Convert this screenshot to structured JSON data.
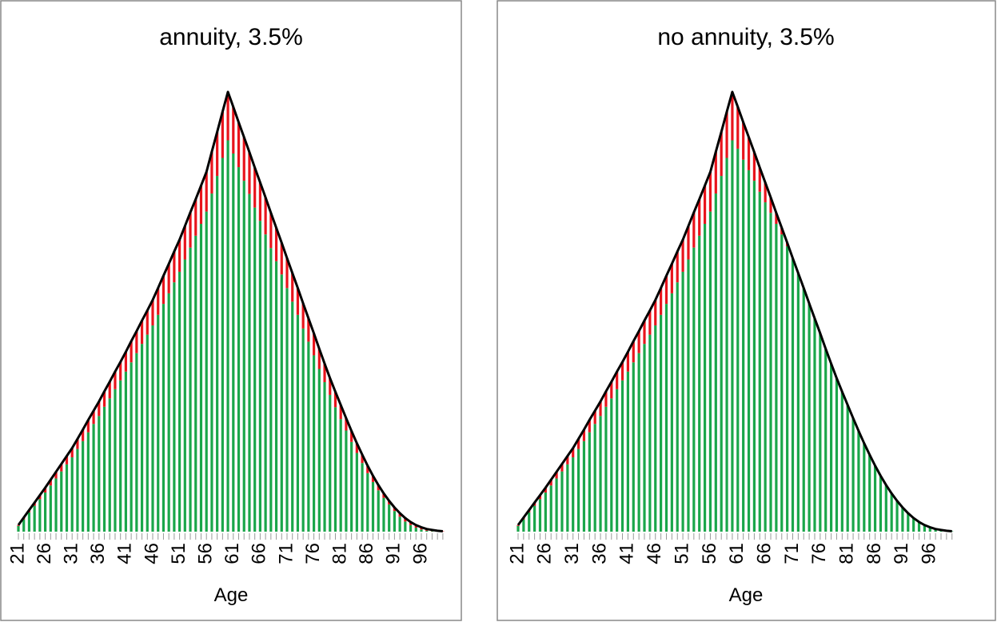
{
  "chart_data": [
    {
      "type": "bar",
      "stacked": true,
      "title": "annuity, 3.5%",
      "x_label": "Age",
      "categories": [
        "21",
        null,
        null,
        null,
        null,
        "26",
        null,
        null,
        null,
        null,
        "31",
        null,
        null,
        null,
        null,
        "36",
        null,
        null,
        null,
        null,
        "41",
        null,
        null,
        null,
        null,
        "46",
        null,
        null,
        null,
        null,
        "51",
        null,
        null,
        null,
        null,
        "56",
        null,
        null,
        null,
        null,
        "61",
        null,
        null,
        null,
        null,
        "66",
        null,
        null,
        null,
        null,
        "71",
        null,
        null,
        null,
        null,
        "76",
        null,
        null,
        null,
        null,
        "81",
        null,
        null,
        null,
        null,
        "86",
        null,
        null,
        null,
        null,
        "91",
        null,
        null,
        null,
        null,
        "96",
        null,
        null,
        null,
        null
      ],
      "ylim": [
        0,
        100
      ],
      "line_color": "#000000",
      "series": [
        {
          "color": "#1aa64a",
          "values": [
            1.3,
            2.8,
            4.4,
            5.9,
            7.4,
            8.9,
            10.5,
            12.1,
            13.7,
            15.3,
            16.9,
            18.8,
            20.6,
            22.6,
            24.5,
            26.3,
            28.4,
            30.3,
            32.4,
            34.4,
            36.4,
            38.5,
            40.6,
            42.7,
            44.8,
            46.9,
            49.3,
            51.8,
            54.2,
            56.7,
            59.1,
            61.9,
            64.6,
            67.3,
            70,
            72.8,
            76.9,
            80.9,
            85,
            89,
            86,
            82.9,
            79.8,
            76.8,
            73.7,
            70.7,
            67.6,
            64.5,
            61.5,
            58.5,
            55.4,
            52.3,
            49.3,
            46.2,
            43.2,
            40.1,
            37,
            34,
            31.1,
            28.3,
            25.6,
            23,
            20.4,
            17.9,
            15.6,
            13.3,
            11.3,
            9.4,
            7.7,
            6.2,
            4.7,
            3.4,
            2.3,
            1.5,
            0.9,
            0.5,
            0.2,
            0.1,
            0,
            0
          ]
        },
        {
          "color": "#e8141c",
          "values": [
            0.2,
            0.4,
            0.5,
            0.7,
            0.9,
            1.1,
            1.3,
            1.5,
            1.7,
            1.9,
            2.1,
            2.3,
            2.6,
            2.8,
            3,
            3.3,
            3.5,
            3.8,
            4,
            4.2,
            4.5,
            4.8,
            5,
            5.3,
            5.5,
            5.8,
            6.1,
            6.4,
            6.7,
            7,
            7.3,
            7.6,
            8,
            8.3,
            8.7,
            9,
            9.5,
            10,
            10.5,
            11,
            10.6,
            10.2,
            9.9,
            9.5,
            9.1,
            8.7,
            8.4,
            8,
            7.6,
            7.2,
            6.8,
            6.5,
            6.1,
            5.7,
            5.3,
            5,
            4.6,
            4.2,
            3.8,
            3.5,
            3.2,
            2.8,
            2.5,
            2.2,
            1.9,
            1.7,
            1.4,
            1.2,
            1,
            0.8,
            0.8,
            0.8,
            0.8,
            0.7,
            0.6,
            0.5,
            0.4,
            0.3,
            0.2,
            0.1
          ]
        }
      ]
    },
    {
      "type": "bar",
      "stacked": true,
      "title": "no annuity, 3.5%",
      "x_label": "Age",
      "categories": [
        "21",
        null,
        null,
        null,
        null,
        "26",
        null,
        null,
        null,
        null,
        "31",
        null,
        null,
        null,
        null,
        "36",
        null,
        null,
        null,
        null,
        "41",
        null,
        null,
        null,
        null,
        "46",
        null,
        null,
        null,
        null,
        "51",
        null,
        null,
        null,
        null,
        "56",
        null,
        null,
        null,
        null,
        "61",
        null,
        null,
        null,
        null,
        "66",
        null,
        null,
        null,
        null,
        "71",
        null,
        null,
        null,
        null,
        "76",
        null,
        null,
        null,
        null,
        "81",
        null,
        null,
        null,
        null,
        "86",
        null,
        null,
        null,
        null,
        "91",
        null,
        null,
        null,
        null,
        "96",
        null,
        null,
        null,
        null
      ],
      "ylim": [
        0,
        100
      ],
      "line_color": "#000000",
      "series": [
        {
          "color": "#1aa64a",
          "values": [
            1.3,
            2.8,
            4.4,
            5.9,
            7.4,
            8.9,
            10.5,
            12.1,
            13.7,
            15.3,
            16.9,
            18.8,
            20.6,
            22.6,
            24.5,
            26.3,
            28.4,
            30.3,
            32.4,
            34.4,
            36.4,
            38.5,
            40.6,
            42.7,
            44.8,
            46.9,
            49.3,
            51.8,
            54.2,
            56.7,
            59.1,
            61.9,
            64.6,
            67.3,
            70,
            72.8,
            76.9,
            80.9,
            85,
            89,
            87.1,
            84.6,
            82.2,
            79.8,
            77.3,
            74.9,
            72.5,
            70,
            67.6,
            64.9,
            62.2,
            58.8,
            55.4,
            51.9,
            48.5,
            45.1,
            41.6,
            38.2,
            34.9,
            31.8,
            28.8,
            25.8,
            22.9,
            20.1,
            17.5,
            15,
            12.7,
            10.6,
            8.7,
            7,
            5.5,
            4.2,
            3.1,
            2.2,
            1.5,
            1,
            0.6,
            0.4,
            0.2,
            0.1
          ]
        },
        {
          "color": "#e8141c",
          "values": [
            0.2,
            0.4,
            0.5,
            0.7,
            0.9,
            1.1,
            1.3,
            1.5,
            1.7,
            1.9,
            2.1,
            2.3,
            2.6,
            2.8,
            3,
            3.3,
            3.5,
            3.8,
            4,
            4.2,
            4.5,
            4.8,
            5,
            5.3,
            5.5,
            5.8,
            6.1,
            6.4,
            6.7,
            7,
            7.3,
            7.6,
            8,
            8.3,
            8.7,
            9,
            9.5,
            10,
            10.5,
            11,
            9.5,
            8.5,
            7.5,
            6.5,
            5.5,
            4.5,
            3.5,
            2.5,
            1.5,
            0.8,
            0,
            0,
            0,
            0,
            0,
            0,
            0,
            0,
            0,
            0,
            0,
            0,
            0,
            0,
            0,
            0,
            0,
            0,
            0,
            0,
            0,
            0,
            0,
            0,
            0,
            0,
            0,
            0,
            0,
            0
          ]
        }
      ]
    }
  ]
}
